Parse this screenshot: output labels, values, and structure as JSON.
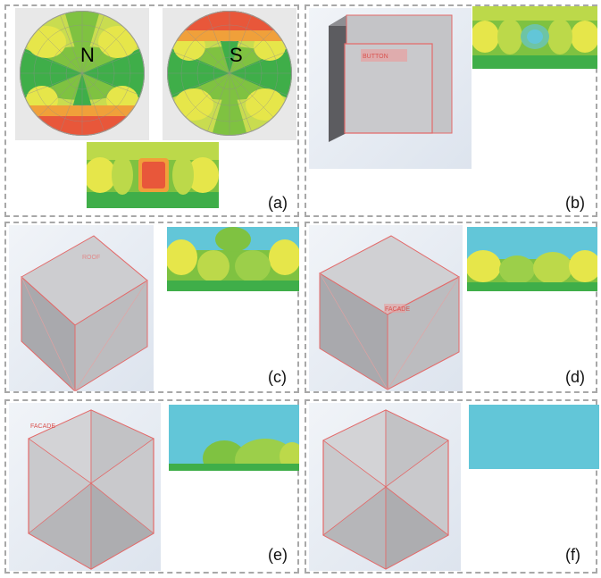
{
  "figure": {
    "panels": [
      {
        "id": "a",
        "label": "(a)"
      },
      {
        "id": "b",
        "label": "(b)"
      },
      {
        "id": "c",
        "label": "(c)"
      },
      {
        "id": "d",
        "label": "(d)"
      },
      {
        "id": "e",
        "label": "(e)"
      },
      {
        "id": "f",
        "label": "(f)"
      }
    ],
    "poles": {
      "north": "N",
      "south": "S"
    }
  },
  "colors": {
    "red": "#e8573a",
    "orange": "#f0a03a",
    "yellow": "#e6e64a",
    "light_green": "#bcd94a",
    "green": "#7fc241",
    "dark_green": "#3fae49",
    "cyan": "#62c6d8",
    "cube_gray": "#b9b9bc",
    "edge": "#e36a6a"
  }
}
